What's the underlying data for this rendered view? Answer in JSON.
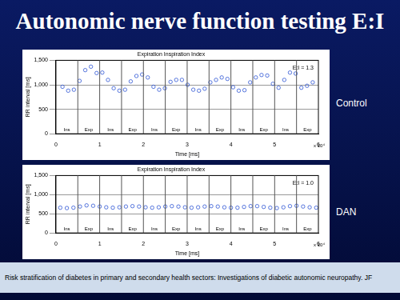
{
  "slide": {
    "title": "Autonomic nerve function testing E:I",
    "footer": "Risk stratification of diabetes in primary and secondary health sectors: Investigations of diabetic autonomic neuropathy. JF"
  },
  "chart_data": [
    {
      "type": "scatter",
      "title": "Expiration Inspiration Index",
      "label": "Control",
      "x_label": "Time [ms]",
      "y_label": "RR interval [ms]",
      "annotations": [
        "E:I = 1.3",
        "x 10⁴"
      ],
      "xlim": [
        0,
        6
      ],
      "xticks": [
        0,
        1,
        2,
        3,
        4,
        5,
        6
      ],
      "ylim": [
        0,
        1500
      ],
      "yticks": [
        0,
        500,
        1000,
        1500
      ],
      "grid": "y",
      "phases": {
        "labels": [
          "Ins",
          "Exp",
          "Ins",
          "Exp",
          "Ins",
          "Exp",
          "Ins",
          "Exp",
          "Ins",
          "Exp",
          "Ins",
          "Exp"
        ],
        "boundaries": [
          0.5,
          1,
          1.5,
          2,
          2.5,
          3,
          3.5,
          4,
          4.5,
          5,
          5.5
        ]
      },
      "color": "#2f55d4",
      "marker": "circle_open",
      "x": [
        0.15,
        0.28,
        0.41,
        0.54,
        0.67,
        0.8,
        0.93,
        1.06,
        1.19,
        1.32,
        1.45,
        1.58,
        1.71,
        1.84,
        1.97,
        2.1,
        2.23,
        2.36,
        2.49,
        2.62,
        2.75,
        2.88,
        3.01,
        3.14,
        3.27,
        3.4,
        3.53,
        3.66,
        3.79,
        3.92,
        4.05,
        4.18,
        4.31,
        4.44,
        4.57,
        4.7,
        4.83,
        4.96,
        5.09,
        5.22,
        5.35,
        5.48,
        5.61,
        5.74,
        5.87
      ],
      "values": [
        960,
        880,
        900,
        1080,
        1300,
        1370,
        1240,
        1250,
        1100,
        930,
        880,
        900,
        1070,
        1180,
        1210,
        1150,
        960,
        900,
        930,
        1060,
        1100,
        1100,
        1000,
        900,
        880,
        920,
        1050,
        1100,
        1150,
        1120,
        950,
        880,
        890,
        1050,
        1150,
        1200,
        1190,
        1020,
        940,
        1100,
        1250,
        1230,
        940,
        980,
        1050
      ]
    },
    {
      "type": "scatter",
      "title": "Expiration Inspiration Index",
      "label": "DAN",
      "x_label": "Time [ms]",
      "y_label": "RR interval [ms]",
      "annotations": [
        "E:I = 1.0",
        "x 10⁴"
      ],
      "xlim": [
        0,
        6
      ],
      "xticks": [
        0,
        1,
        2,
        3,
        4,
        5,
        6
      ],
      "ylim": [
        0,
        1500
      ],
      "yticks": [
        0,
        500,
        1000,
        1500
      ],
      "grid": "y",
      "phases": {
        "labels": [
          "Ins",
          "Exp",
          "Ins",
          "Exp",
          "Ins",
          "Exp",
          "Ins",
          "Exp",
          "Ins",
          "Exp",
          "Ins",
          "Exp"
        ],
        "boundaries": [
          0.5,
          1,
          1.5,
          2,
          2.5,
          3,
          3.5,
          4,
          4.5,
          5,
          5.5
        ]
      },
      "color": "#2f55d4",
      "marker": "circle_open",
      "x": [
        0.1,
        0.25,
        0.4,
        0.55,
        0.7,
        0.85,
        1.0,
        1.15,
        1.3,
        1.45,
        1.6,
        1.75,
        1.9,
        2.05,
        2.2,
        2.35,
        2.5,
        2.65,
        2.8,
        2.95,
        3.1,
        3.25,
        3.4,
        3.55,
        3.7,
        3.85,
        4.0,
        4.15,
        4.3,
        4.45,
        4.6,
        4.75,
        4.9,
        5.05,
        5.2,
        5.35,
        5.5,
        5.65,
        5.8,
        5.95
      ],
      "values": [
        660,
        650,
        660,
        690,
        720,
        710,
        690,
        670,
        660,
        670,
        690,
        700,
        690,
        670,
        660,
        670,
        690,
        700,
        690,
        670,
        660,
        670,
        690,
        700,
        690,
        670,
        660,
        660,
        680,
        700,
        700,
        680,
        660,
        650,
        670,
        700,
        710,
        690,
        670,
        660
      ]
    }
  ]
}
